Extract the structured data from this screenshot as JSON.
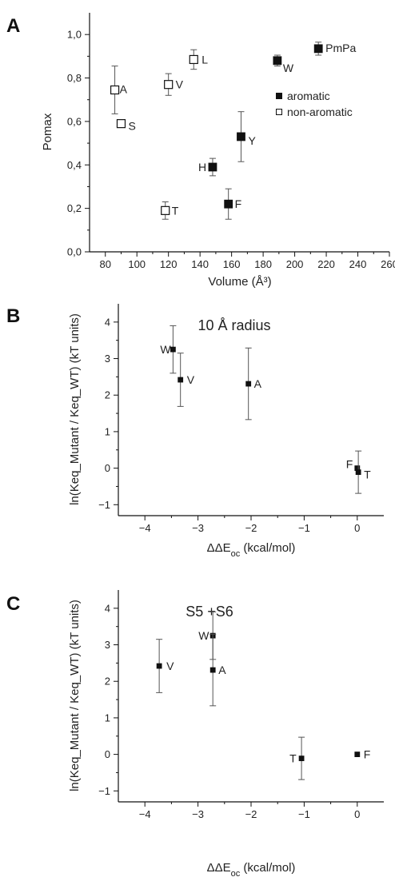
{
  "chart_data": [
    {
      "type": "scatter",
      "panel": "A",
      "title": "",
      "xlabel": "Volume (Å³)",
      "ylabel": "Pomax",
      "xlim": [
        70,
        260
      ],
      "ylim": [
        0.0,
        1.1
      ],
      "xticks": [
        80,
        100,
        120,
        140,
        160,
        180,
        200,
        220,
        240,
        260
      ],
      "yticks": [
        "0,0",
        "0,2",
        "0,4",
        "0,6",
        "0,8",
        "1,0"
      ],
      "yticks_values": [
        0.0,
        0.2,
        0.4,
        0.6,
        0.8,
        1.0
      ],
      "legend": {
        "placement": "right",
        "entries": [
          "aromatic",
          "non-aromatic"
        ]
      },
      "series": [
        {
          "name": "aromatic",
          "marker": "filled-square",
          "points": [
            {
              "label": "PmPa",
              "x": 215,
              "y": 0.935,
              "err": 0.03
            },
            {
              "label": "W",
              "x": 189,
              "y": 0.88,
              "err": 0.025
            },
            {
              "label": "Y",
              "x": 166,
              "y": 0.53,
              "err": 0.115
            },
            {
              "label": "H",
              "x": 148,
              "y": 0.39,
              "err": 0.04
            },
            {
              "label": "F",
              "x": 158,
              "y": 0.22,
              "err": 0.07
            }
          ]
        },
        {
          "name": "non-aromatic",
          "marker": "open-square",
          "points": [
            {
              "label": "L",
              "x": 136,
              "y": 0.885,
              "err": 0.045
            },
            {
              "label": "V",
              "x": 120,
              "y": 0.77,
              "err": 0.05
            },
            {
              "label": "A",
              "x": 86,
              "y": 0.745,
              "err": 0.11
            },
            {
              "label": "S",
              "x": 90,
              "y": 0.59,
              "err": 0
            },
            {
              "label": "T",
              "x": 118,
              "y": 0.19,
              "err": 0.04
            }
          ]
        }
      ]
    },
    {
      "type": "scatter",
      "panel": "B",
      "title": "",
      "annotation": "10 Å radius",
      "xlabel": "ΔΔE",
      "xlabel_sub": "oc",
      "xlabel_suffix": " (kcal/mol)",
      "ylabel": "ln(Keq_Mutant / Keq_WT) (kT units)",
      "xlim": [
        -4.5,
        0.5
      ],
      "ylim": [
        -1.3,
        4.5
      ],
      "xticks": [
        -4,
        -3,
        -2,
        -1,
        0
      ],
      "yticks": [
        -1,
        0,
        1,
        2,
        3,
        4
      ],
      "series": [
        {
          "name": "",
          "marker": "filled-square-small",
          "points": [
            {
              "label": "W",
              "x": -3.47,
              "y": 3.25,
              "err": 0.65
            },
            {
              "label": "V",
              "x": -3.33,
              "y": 2.42,
              "err": 0.73
            },
            {
              "label": "A",
              "x": -2.05,
              "y": 2.31,
              "err": 0.98
            },
            {
              "label": "F",
              "x": 0.0,
              "y": 0.0,
              "err": 0
            },
            {
              "label": "T",
              "x": 0.02,
              "y": -0.11,
              "err": 0.58
            }
          ]
        }
      ]
    },
    {
      "type": "scatter",
      "panel": "C",
      "title": "",
      "annotation": "S5 +S6",
      "xlabel": "ΔΔE",
      "xlabel_sub": "oc",
      "xlabel_suffix": " (kcal/mol)",
      "ylabel": "ln(Keq_Mutant / Keq_WT) (kT units)",
      "xlim": [
        -4.5,
        0.5
      ],
      "ylim": [
        -1.3,
        4.5
      ],
      "xticks": [
        -4,
        -3,
        -2,
        -1,
        0
      ],
      "yticks": [
        -1,
        0,
        1,
        2,
        3,
        4
      ],
      "series": [
        {
          "name": "",
          "marker": "filled-square-small",
          "points": [
            {
              "label": "V",
              "x": -3.73,
              "y": 2.42,
              "err": 0.73
            },
            {
              "label": "W",
              "x": -2.72,
              "y": 3.25,
              "err": 0.65
            },
            {
              "label": "A",
              "x": -2.72,
              "y": 2.31,
              "err": 0.98
            },
            {
              "label": "T",
              "x": -1.05,
              "y": -0.11,
              "err": 0.58
            },
            {
              "label": "F",
              "x": 0.0,
              "y": 0.0,
              "err": 0
            }
          ]
        }
      ]
    }
  ]
}
